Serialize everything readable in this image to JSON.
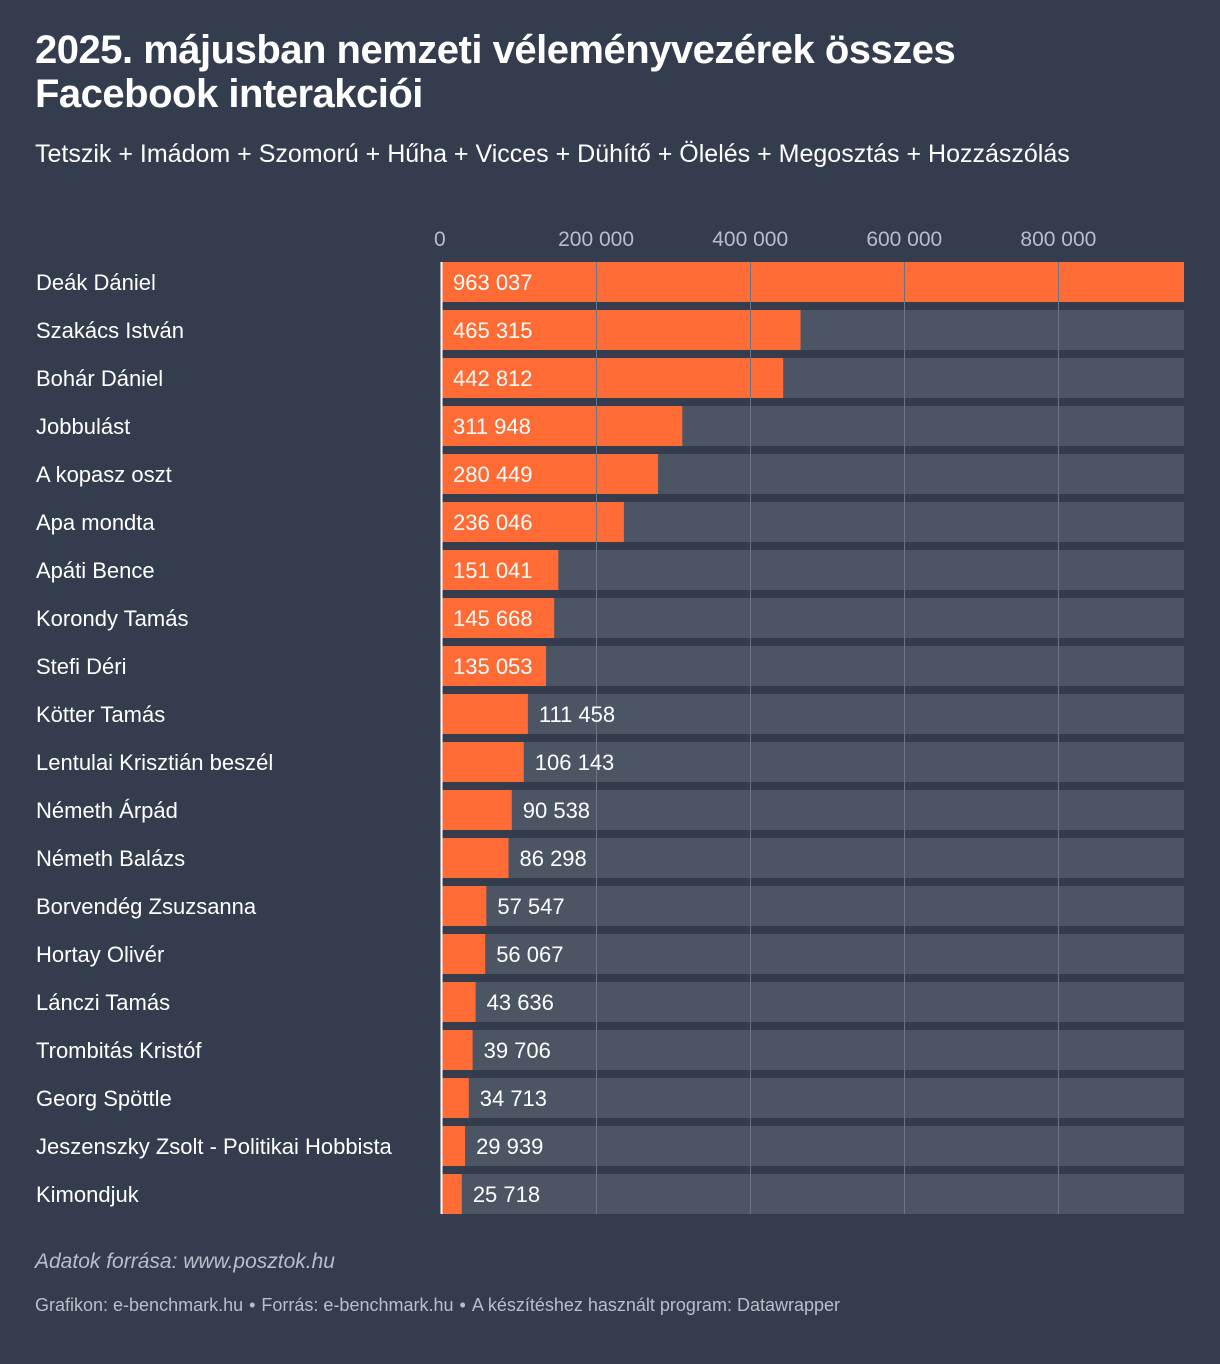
{
  "title": "2025. májusban nemzeti véleményvezérek összes Facebook interakciói",
  "subtitle": "Tetszik + Imádom + Szomorú + Hűha + Vicces + Dühítő + Ölelés + Megosztás + Hozzászólás",
  "source": "Adatok forrása: www.posztok.hu",
  "credits": {
    "graphic": "Grafikon: e-benchmark.hu",
    "source": "Forrás: e-benchmark.hu",
    "tool": "A készítéshez használt program: Datawrapper",
    "separator": "•"
  },
  "colors": {
    "background": "#333d4e",
    "bar": "#ff6b35",
    "track": "#4b5564",
    "grid": "#6b7482",
    "tick_label": "#b9bfc9",
    "text": "#ffffff"
  },
  "chart_data": {
    "type": "bar",
    "orientation": "horizontal",
    "categories": [
      "Deák Dániel",
      "Szakács István",
      "Bohár Dániel",
      "Jobbulást",
      "A kopasz oszt",
      "Apa mondta",
      "Apáti Bence",
      "Korondy Tamás",
      "Stefi Déri",
      "Kötter Tamás",
      "Lentulai Krisztián beszél",
      "Németh Árpád",
      "Németh Balázs",
      "Borvendég Zsuzsanna",
      "Hortay Olivér",
      "Lánczi Tamás",
      "Trombitás Kristóf",
      "Georg Spöttle",
      "Jeszenszky Zsolt - Politikai Hobbista",
      "Kimondjuk"
    ],
    "values": [
      963037,
      465315,
      442812,
      311948,
      280449,
      236046,
      151041,
      145668,
      135053,
      111458,
      106143,
      90538,
      86298,
      57547,
      56067,
      43636,
      39706,
      34713,
      29939,
      25718
    ],
    "value_labels": [
      "963 037",
      "465 315",
      "442 812",
      "311 948",
      "280 449",
      "236 046",
      "151 041",
      "145 668",
      "135 053",
      "111 458",
      "106 143",
      "90 538",
      "86 298",
      "57 547",
      "56 067",
      "43 636",
      "39 706",
      "34 713",
      "29 939",
      "25 718"
    ],
    "xlim": [
      0,
      963037
    ],
    "xticks": [
      0,
      200000,
      400000,
      600000,
      800000
    ],
    "xtick_labels": [
      "0",
      "200 000",
      "400 000",
      "600 000",
      "800 000"
    ],
    "tick_position": "top",
    "grid": true
  }
}
